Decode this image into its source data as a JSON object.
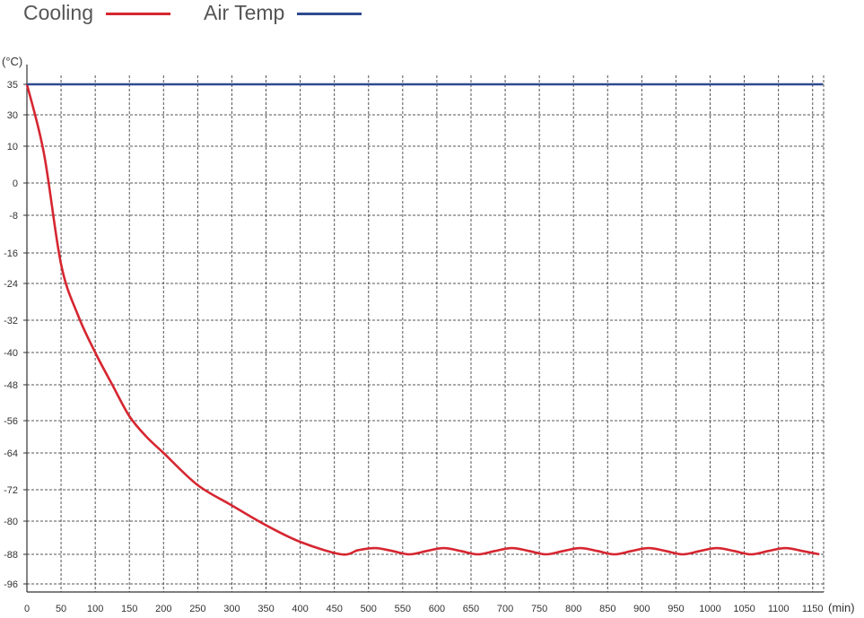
{
  "chart_data": {
    "type": "line",
    "title": "",
    "ylabel": "(°C)",
    "xlabel": "(min)",
    "grid": true,
    "legend_placement": "top-left",
    "xlim": [
      0,
      1165
    ],
    "x_ticks": [
      0,
      50,
      100,
      150,
      200,
      250,
      300,
      350,
      400,
      450,
      500,
      550,
      600,
      650,
      700,
      750,
      800,
      850,
      900,
      950,
      1000,
      1050,
      1100,
      1150
    ],
    "y_ticks": [
      35,
      30,
      10,
      0,
      -8,
      -16,
      -24,
      -32,
      -40,
      -48,
      -56,
      -64,
      -72,
      -80,
      -88,
      -96
    ],
    "series": [
      {
        "name": "Cooling",
        "color": "#d62631",
        "x": [
          0,
          25,
          50,
          75,
          100,
          125,
          150,
          175,
          200,
          250,
          300,
          350,
          400,
          460,
          485,
          510,
          535,
          560,
          585,
          610,
          635,
          660,
          685,
          710,
          735,
          760,
          785,
          810,
          835,
          860,
          885,
          910,
          935,
          960,
          985,
          1010,
          1035,
          1060,
          1085,
          1110,
          1135,
          1160
        ],
        "y": [
          35,
          8,
          -19,
          -31,
          -40,
          -48,
          -55,
          -60,
          -64,
          -71,
          -76,
          -81,
          -85,
          -88,
          -87,
          -86.5,
          -87.2,
          -88,
          -87.2,
          -86.5,
          -87.2,
          -88,
          -87.2,
          -86.5,
          -87.2,
          -88,
          -87.2,
          -86.5,
          -87.2,
          -88,
          -87.2,
          -86.5,
          -87.2,
          -88,
          -87.2,
          -86.5,
          -87.2,
          -88,
          -87.2,
          -86.5,
          -87.2,
          -88
        ]
      },
      {
        "name": "Air Temp",
        "color": "#2f4b8f",
        "x": [
          0,
          1165
        ],
        "y": [
          35,
          35
        ]
      }
    ]
  }
}
